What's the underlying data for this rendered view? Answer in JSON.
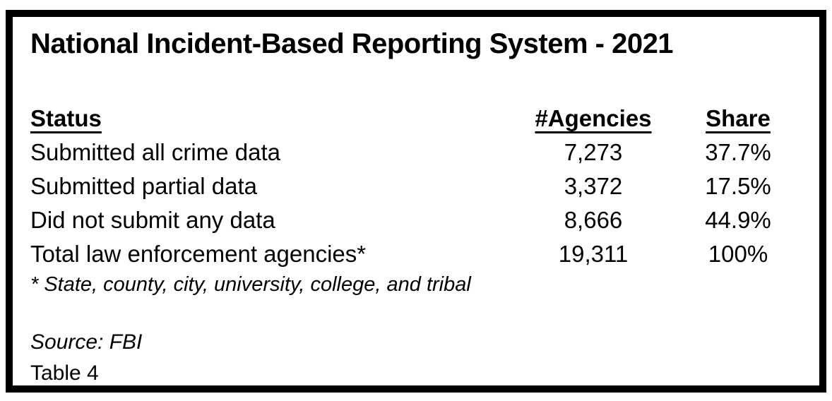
{
  "title": "National Incident-Based Reporting System - 2021",
  "colors": {
    "background": "#ffffff",
    "text": "#000000",
    "frame_border": "#000000"
  },
  "table": {
    "headers": {
      "status": "Status",
      "agencies": "#Agencies",
      "share": "Share"
    },
    "rows": [
      {
        "status": "Submitted all crime data",
        "agencies": "7,273",
        "share": "37.7%"
      },
      {
        "status": "Submitted partial data",
        "agencies": "3,372",
        "share": "17.5%"
      },
      {
        "status": "Did not submit any data",
        "agencies": "8,666",
        "share": "44.9%"
      },
      {
        "status": "Total law enforcement agencies*",
        "agencies": "19,311",
        "share": "100%"
      }
    ]
  },
  "footnote": "* State, county, city, university, college, and tribal",
  "source": "Source: FBI",
  "table_label": "Table 4",
  "chart_data": {
    "type": "table",
    "title": "National Incident-Based Reporting System - 2021",
    "columns": [
      "Status",
      "#Agencies",
      "Share"
    ],
    "rows": [
      [
        "Submitted all crime data",
        7273,
        "37.7%"
      ],
      [
        "Submitted partial data",
        3372,
        "17.5%"
      ],
      [
        "Did not submit any data",
        8666,
        "44.9%"
      ],
      [
        "Total law enforcement agencies*",
        19311,
        "100%"
      ]
    ],
    "footnote": "* State, county, city, university, college, and tribal",
    "source": "Source: FBI",
    "table_label": "Table 4"
  }
}
